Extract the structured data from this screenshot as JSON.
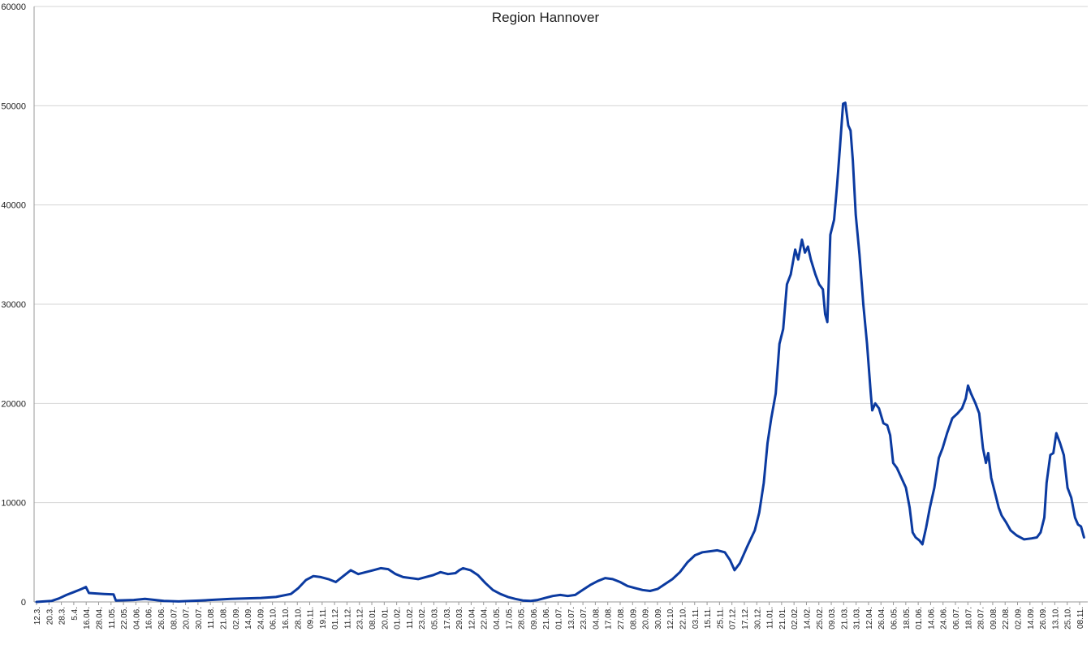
{
  "chart_data": {
    "type": "line",
    "title": "Region Hannover",
    "xlabel": "",
    "ylabel": "",
    "ylim": [
      0,
      60000
    ],
    "y_ticks": [
      0,
      10000,
      20000,
      30000,
      40000,
      50000,
      60000
    ],
    "grid": "horizontal",
    "legend": "none",
    "colors": {
      "line": "#0b3aa0",
      "grid": "#d4d4d4",
      "axis": "#9a9a9a",
      "text": "#222222"
    },
    "x_tick_labels": [
      "12.3.",
      "20.3.",
      "28.3.",
      "5.4.",
      "16.04.",
      "28.04.",
      "11.05.",
      "22.05.",
      "04.06.",
      "16.06.",
      "26.06.",
      "08.07.",
      "20.07.",
      "30.07.",
      "11.08.",
      "21.08.",
      "02.09.",
      "14.09.",
      "24.09.",
      "06.10.",
      "16.10.",
      "28.10.",
      "09.11.",
      "19.11.",
      "01.12.",
      "11.12.",
      "23.12.",
      "08.01.",
      "20.01.",
      "01.02.",
      "11.02.",
      "23.02.",
      "05.03.",
      "17.03.",
      "29.03.",
      "12.04.",
      "22.04.",
      "04.05.",
      "17.05.",
      "28.05.",
      "09.06.",
      "21.06.",
      "01.07.",
      "13.07.",
      "23.07.",
      "04.08.",
      "17.08.",
      "27.08.",
      "08.09.",
      "20.09.",
      "30.09.",
      "12.10.",
      "22.10.",
      "03.11.",
      "15.11.",
      "25.11.",
      "07.12.",
      "17.12.",
      "30.12.",
      "11.01.",
      "21.01.",
      "02.02.",
      "14.02.",
      "25.02.",
      "09.03.",
      "21.03.",
      "31.03.",
      "12.04.",
      "26.04.",
      "06.05.",
      "18.05.",
      "01.06.",
      "14.06.",
      "24.06.",
      "06.07.",
      "18.07.",
      "28.07.",
      "09.08.",
      "22.08.",
      "02.09.",
      "14.09.",
      "26.09.",
      "13.10.",
      "25.10.",
      "08.11."
    ],
    "series": [
      {
        "name": "",
        "points": [
          [
            0,
            0
          ],
          [
            2,
            100
          ],
          [
            3,
            350
          ],
          [
            4,
            700
          ],
          [
            5,
            1000
          ],
          [
            6,
            1300
          ],
          [
            6.6,
            1500
          ],
          [
            7,
            900
          ],
          [
            9,
            800
          ],
          [
            10.3,
            750
          ],
          [
            10.6,
            150
          ],
          [
            13,
            200
          ],
          [
            14.5,
            300
          ],
          [
            17,
            100
          ],
          [
            19,
            50
          ],
          [
            22,
            150
          ],
          [
            26,
            300
          ],
          [
            30,
            400
          ],
          [
            32,
            500
          ],
          [
            34,
            800
          ],
          [
            35,
            1400
          ],
          [
            36,
            2200
          ],
          [
            37,
            2600
          ],
          [
            38,
            2500
          ],
          [
            39,
            2300
          ],
          [
            40,
            2000
          ],
          [
            41,
            2600
          ],
          [
            42,
            3200
          ],
          [
            43,
            2800
          ],
          [
            44,
            3000
          ],
          [
            45,
            3200
          ],
          [
            46,
            3400
          ],
          [
            47,
            3300
          ],
          [
            48,
            2800
          ],
          [
            49,
            2500
          ],
          [
            50,
            2400
          ],
          [
            51,
            2300
          ],
          [
            52,
            2500
          ],
          [
            53,
            2700
          ],
          [
            54,
            3000
          ],
          [
            55,
            2800
          ],
          [
            56,
            2900
          ],
          [
            56.5,
            3200
          ],
          [
            57,
            3400
          ],
          [
            58,
            3200
          ],
          [
            59,
            2700
          ],
          [
            60,
            1900
          ],
          [
            61,
            1200
          ],
          [
            62,
            800
          ],
          [
            63,
            500
          ],
          [
            64,
            300
          ],
          [
            65,
            150
          ],
          [
            66,
            100
          ],
          [
            67,
            200
          ],
          [
            68,
            400
          ],
          [
            69,
            600
          ],
          [
            70,
            700
          ],
          [
            71,
            600
          ],
          [
            72,
            700
          ],
          [
            73,
            1200
          ],
          [
            74,
            1700
          ],
          [
            75,
            2100
          ],
          [
            76,
            2400
          ],
          [
            77,
            2300
          ],
          [
            78,
            2000
          ],
          [
            79,
            1600
          ],
          [
            80,
            1400
          ],
          [
            81,
            1200
          ],
          [
            82,
            1100
          ],
          [
            83,
            1300
          ],
          [
            84,
            1800
          ],
          [
            85,
            2300
          ],
          [
            86,
            3000
          ],
          [
            87,
            4000
          ],
          [
            88,
            4700
          ],
          [
            89,
            5000
          ],
          [
            90,
            5100
          ],
          [
            91,
            5200
          ],
          [
            92,
            5000
          ],
          [
            92.7,
            4200
          ],
          [
            93.3,
            3200
          ],
          [
            94,
            3900
          ],
          [
            95,
            5600
          ],
          [
            96,
            7200
          ],
          [
            96.6,
            9000
          ],
          [
            97.2,
            12000
          ],
          [
            97.7,
            16000
          ],
          [
            98.2,
            18500
          ],
          [
            98.8,
            21000
          ],
          [
            99.3,
            26000
          ],
          [
            99.8,
            27500
          ],
          [
            100.3,
            32000
          ],
          [
            100.8,
            33000
          ],
          [
            101.4,
            35500
          ],
          [
            101.8,
            34500
          ],
          [
            102.3,
            36500
          ],
          [
            102.7,
            35200
          ],
          [
            103.1,
            35800
          ],
          [
            103.5,
            34500
          ],
          [
            104.1,
            33000
          ],
          [
            104.6,
            32000
          ],
          [
            105.1,
            31500
          ],
          [
            105.4,
            29000
          ],
          [
            105.7,
            28200
          ],
          [
            106.1,
            37000
          ],
          [
            106.6,
            38500
          ],
          [
            107,
            42000
          ],
          [
            107.4,
            46000
          ],
          [
            107.8,
            50200
          ],
          [
            108.1,
            50300
          ],
          [
            108.5,
            48000
          ],
          [
            108.8,
            47500
          ],
          [
            109.1,
            44500
          ],
          [
            109.5,
            39000
          ],
          [
            110,
            35000
          ],
          [
            110.5,
            30000
          ],
          [
            111,
            26000
          ],
          [
            111.5,
            21000
          ],
          [
            111.7,
            19300
          ],
          [
            112.1,
            20000
          ],
          [
            112.6,
            19500
          ],
          [
            113.2,
            18000
          ],
          [
            113.7,
            17800
          ],
          [
            114.1,
            16800
          ],
          [
            114.5,
            14000
          ],
          [
            115,
            13500
          ],
          [
            115.6,
            12500
          ],
          [
            116.2,
            11500
          ],
          [
            116.7,
            9500
          ],
          [
            117.1,
            7000
          ],
          [
            117.5,
            6500
          ],
          [
            118,
            6200
          ],
          [
            118.4,
            5800
          ],
          [
            118.9,
            7500
          ],
          [
            119.4,
            9500
          ],
          [
            120,
            11500
          ],
          [
            120.6,
            14500
          ],
          [
            121.1,
            15500
          ],
          [
            121.7,
            17000
          ],
          [
            122.4,
            18500
          ],
          [
            123.1,
            19000
          ],
          [
            123.7,
            19500
          ],
          [
            124.2,
            20500
          ],
          [
            124.5,
            21800
          ],
          [
            124.9,
            21000
          ],
          [
            125.5,
            20000
          ],
          [
            126,
            19000
          ],
          [
            126.5,
            15500
          ],
          [
            126.9,
            14000
          ],
          [
            127.2,
            15000
          ],
          [
            127.6,
            12500
          ],
          [
            128.1,
            11000
          ],
          [
            128.6,
            9500
          ],
          [
            129,
            8700
          ],
          [
            129.6,
            8000
          ],
          [
            130.2,
            7200
          ],
          [
            131,
            6700
          ],
          [
            132,
            6300
          ],
          [
            133,
            6400
          ],
          [
            133.7,
            6500
          ],
          [
            134.2,
            7000
          ],
          [
            134.7,
            8500
          ],
          [
            135,
            12000
          ],
          [
            135.5,
            14800
          ],
          [
            135.9,
            15000
          ],
          [
            136.3,
            17000
          ],
          [
            136.8,
            16000
          ],
          [
            137.3,
            14800
          ],
          [
            137.8,
            11500
          ],
          [
            138.3,
            10500
          ],
          [
            138.8,
            8500
          ],
          [
            139.2,
            7800
          ],
          [
            139.6,
            7600
          ],
          [
            140,
            6500
          ]
        ]
      }
    ]
  }
}
